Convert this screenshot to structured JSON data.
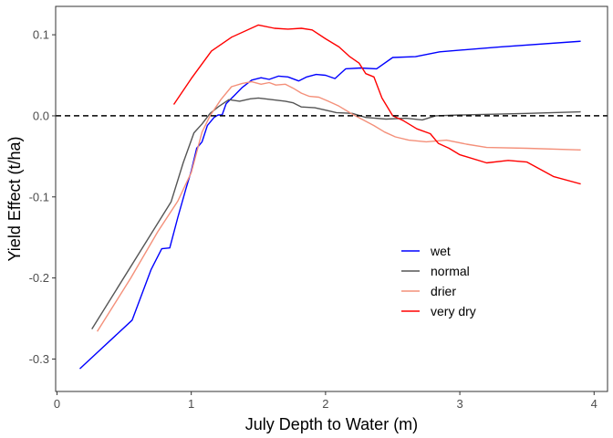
{
  "chart_data": {
    "type": "line",
    "xlabel": "July Depth to Water (m)",
    "ylabel": "Yield Effect (t/ha)",
    "xlim": [
      -0.01,
      4.1
    ],
    "ylim": [
      -0.34,
      0.135
    ],
    "x_ticks": [
      0,
      1,
      2,
      3,
      4
    ],
    "y_ticks": [
      0.1,
      0.0,
      -0.1,
      -0.2,
      -0.3
    ],
    "x_tick_labels": [
      "0",
      "1",
      "2",
      "3",
      "4"
    ],
    "y_tick_labels": [
      "0.1",
      "0.0",
      "-0.1",
      "-0.2",
      "-0.3"
    ],
    "grid": false,
    "legend_position": "lower-right-inside",
    "reference_line": {
      "y": 0,
      "style": "dashed",
      "color": "#000000"
    },
    "series": [
      {
        "name": "wet",
        "color": "#0000ff",
        "points": [
          [
            0.17,
            -0.312
          ],
          [
            0.56,
            -0.252
          ],
          [
            0.7,
            -0.19
          ],
          [
            0.78,
            -0.164
          ],
          [
            0.84,
            -0.163
          ],
          [
            0.9,
            -0.125
          ],
          [
            0.96,
            -0.09
          ],
          [
            1.0,
            -0.068
          ],
          [
            1.04,
            -0.04
          ],
          [
            1.08,
            -0.032
          ],
          [
            1.12,
            -0.012
          ],
          [
            1.17,
            -0.002
          ],
          [
            1.2,
            0.001
          ],
          [
            1.23,
            0.001
          ],
          [
            1.26,
            0.015
          ],
          [
            1.32,
            0.025
          ],
          [
            1.38,
            0.035
          ],
          [
            1.45,
            0.044
          ],
          [
            1.52,
            0.047
          ],
          [
            1.58,
            0.045
          ],
          [
            1.65,
            0.049
          ],
          [
            1.72,
            0.048
          ],
          [
            1.8,
            0.043
          ],
          [
            1.86,
            0.048
          ],
          [
            1.93,
            0.051
          ],
          [
            2.0,
            0.05
          ],
          [
            2.07,
            0.046
          ],
          [
            2.15,
            0.058
          ],
          [
            2.26,
            0.059
          ],
          [
            2.38,
            0.058
          ],
          [
            2.5,
            0.072
          ],
          [
            2.67,
            0.073
          ],
          [
            2.85,
            0.079
          ],
          [
            3.3,
            0.085
          ],
          [
            3.9,
            0.092
          ]
        ]
      },
      {
        "name": "normal",
        "color": "#555555",
        "points": [
          [
            0.26,
            -0.263
          ],
          [
            0.85,
            -0.106
          ],
          [
            0.94,
            -0.058
          ],
          [
            1.02,
            -0.021
          ],
          [
            1.08,
            -0.01
          ],
          [
            1.14,
            0.003
          ],
          [
            1.2,
            0.011
          ],
          [
            1.28,
            0.02
          ],
          [
            1.36,
            0.018
          ],
          [
            1.44,
            0.021
          ],
          [
            1.5,
            0.022
          ],
          [
            1.6,
            0.02
          ],
          [
            1.7,
            0.018
          ],
          [
            1.76,
            0.016
          ],
          [
            1.82,
            0.011
          ],
          [
            1.92,
            0.01
          ],
          [
            2.0,
            0.007
          ],
          [
            2.08,
            0.004
          ],
          [
            2.2,
            0.003
          ],
          [
            2.3,
            -0.002
          ],
          [
            2.45,
            -0.004
          ],
          [
            2.6,
            -0.003
          ],
          [
            2.72,
            -0.005
          ],
          [
            2.82,
            0.0
          ],
          [
            3.0,
            0.001
          ],
          [
            3.5,
            0.003
          ],
          [
            3.9,
            0.005
          ]
        ]
      },
      {
        "name": "drier",
        "color": "#f4907a",
        "points": [
          [
            0.3,
            -0.266
          ],
          [
            0.55,
            -0.2
          ],
          [
            0.75,
            -0.143
          ],
          [
            0.9,
            -0.105
          ],
          [
            1.0,
            -0.07
          ],
          [
            1.08,
            -0.02
          ],
          [
            1.14,
            0.0
          ],
          [
            1.22,
            0.02
          ],
          [
            1.3,
            0.036
          ],
          [
            1.38,
            0.04
          ],
          [
            1.45,
            0.042
          ],
          [
            1.52,
            0.039
          ],
          [
            1.58,
            0.041
          ],
          [
            1.63,
            0.038
          ],
          [
            1.7,
            0.039
          ],
          [
            1.76,
            0.034
          ],
          [
            1.82,
            0.028
          ],
          [
            1.88,
            0.024
          ],
          [
            1.95,
            0.023
          ],
          [
            2.02,
            0.018
          ],
          [
            2.1,
            0.012
          ],
          [
            2.2,
            0.002
          ],
          [
            2.28,
            -0.005
          ],
          [
            2.36,
            -0.012
          ],
          [
            2.44,
            -0.02
          ],
          [
            2.52,
            -0.026
          ],
          [
            2.62,
            -0.03
          ],
          [
            2.75,
            -0.032
          ],
          [
            2.9,
            -0.03
          ],
          [
            3.05,
            -0.035
          ],
          [
            3.2,
            -0.039
          ],
          [
            3.5,
            -0.04
          ],
          [
            3.9,
            -0.042
          ]
        ]
      },
      {
        "name": "very dry",
        "color": "#ff0000",
        "points": [
          [
            0.87,
            0.014
          ],
          [
            1.0,
            0.046
          ],
          [
            1.15,
            0.08
          ],
          [
            1.3,
            0.097
          ],
          [
            1.5,
            0.112
          ],
          [
            1.62,
            0.108
          ],
          [
            1.72,
            0.107
          ],
          [
            1.82,
            0.108
          ],
          [
            1.9,
            0.106
          ],
          [
            2.0,
            0.095
          ],
          [
            2.1,
            0.085
          ],
          [
            2.18,
            0.073
          ],
          [
            2.25,
            0.065
          ],
          [
            2.3,
            0.052
          ],
          [
            2.36,
            0.048
          ],
          [
            2.42,
            0.022
          ],
          [
            2.5,
            0.0
          ],
          [
            2.58,
            -0.006
          ],
          [
            2.68,
            -0.016
          ],
          [
            2.78,
            -0.022
          ],
          [
            2.84,
            -0.034
          ],
          [
            2.92,
            -0.04
          ],
          [
            3.0,
            -0.048
          ],
          [
            3.2,
            -0.058
          ],
          [
            3.36,
            -0.055
          ],
          [
            3.5,
            -0.057
          ],
          [
            3.7,
            -0.075
          ],
          [
            3.9,
            -0.084
          ]
        ]
      }
    ]
  }
}
